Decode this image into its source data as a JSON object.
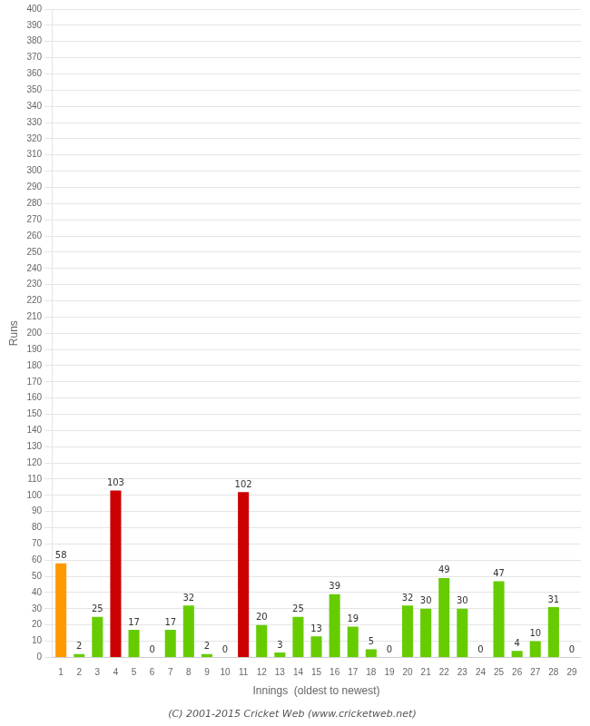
{
  "chart_data": {
    "type": "bar",
    "categories": [
      "1",
      "2",
      "3",
      "4",
      "5",
      "6",
      "7",
      "8",
      "9",
      "10",
      "11",
      "12",
      "13",
      "14",
      "15",
      "16",
      "17",
      "18",
      "19",
      "20",
      "21",
      "22",
      "23",
      "24",
      "25",
      "26",
      "27",
      "28",
      "29"
    ],
    "values": [
      58,
      2,
      25,
      103,
      17,
      0,
      17,
      32,
      2,
      0,
      102,
      20,
      3,
      25,
      13,
      39,
      19,
      5,
      0,
      32,
      30,
      49,
      30,
      0,
      47,
      4,
      10,
      31,
      0
    ],
    "colors": [
      "#ff9900",
      "#66cc00",
      "#66cc00",
      "#cc0000",
      "#66cc00",
      "#66cc00",
      "#66cc00",
      "#66cc00",
      "#66cc00",
      "#66cc00",
      "#cc0000",
      "#66cc00",
      "#66cc00",
      "#66cc00",
      "#66cc00",
      "#66cc00",
      "#66cc00",
      "#66cc00",
      "#66cc00",
      "#66cc00",
      "#66cc00",
      "#66cc00",
      "#66cc00",
      "#66cc00",
      "#66cc00",
      "#66cc00",
      "#66cc00",
      "#66cc00",
      "#66cc00"
    ],
    "xlabel": "Innings  (oldest to newest)",
    "ylabel": "Runs",
    "ylim": [
      0,
      400
    ],
    "yticks": [
      0,
      10,
      20,
      30,
      40,
      50,
      60,
      70,
      80,
      90,
      100,
      110,
      120,
      130,
      140,
      150,
      160,
      170,
      180,
      190,
      200,
      210,
      220,
      230,
      240,
      250,
      260,
      270,
      280,
      290,
      300,
      310,
      320,
      330,
      340,
      350,
      360,
      370,
      380,
      390,
      400
    ],
    "grid": true,
    "data_labels": true,
    "annotations": [
      "(C) 2001-2015 Cricket Web (www.cricketweb.net)"
    ]
  }
}
